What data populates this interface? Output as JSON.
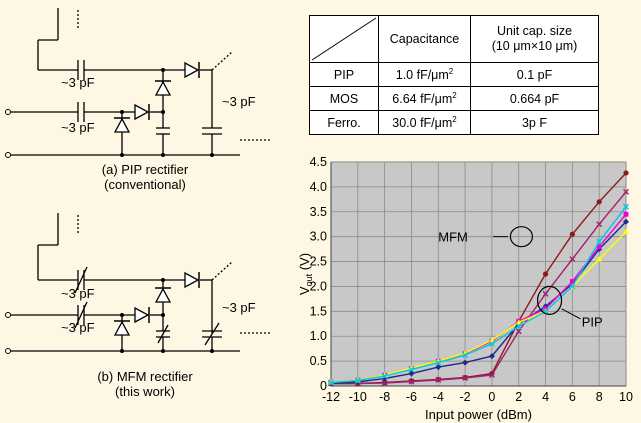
{
  "table": {
    "headers": [
      "",
      "Capacitance",
      "Unit cap. size",
      "(10 μm×10 μm)"
    ],
    "rows": [
      {
        "name": "PIP",
        "capacitance": "1.0 fF/μm",
        "exp": "2",
        "unit": "0.1 pF"
      },
      {
        "name": "MOS",
        "capacitance": "6.64 fF/μm",
        "exp": "2",
        "unit": "0.664 pF"
      },
      {
        "name": "Ferro.",
        "capacitance": "30.0 fF/μm",
        "exp": "2",
        "unit": "3p F"
      }
    ]
  },
  "circuits": {
    "top_caption_1": "(a) PIP rectifier",
    "top_caption_2": "(conventional)",
    "bottom_caption_1": "(b) MFM rectifier",
    "bottom_caption_2": "(this work)",
    "cap_label": "~3 pF"
  },
  "chart_data": {
    "type": "line",
    "xlabel": "Input power (dBm)",
    "ylabel_main": "V",
    "ylabel_sub": "out",
    "ylabel_unit": " (V)",
    "xlim": [
      -12,
      10
    ],
    "ylim": [
      0,
      4.5
    ],
    "xticks": [
      -12,
      -10,
      -8,
      -6,
      -4,
      -2,
      0,
      2,
      4,
      6,
      8,
      10
    ],
    "yticks": [
      "0",
      "0.5",
      "1.0",
      "1.5",
      "2.0",
      "2.5",
      "3.0",
      "3.5",
      "4.0",
      "4.5"
    ],
    "grid": true,
    "annotations": [
      "MFM",
      "PIP"
    ],
    "series": [
      {
        "color": "#8b1a1a",
        "marker": "circle",
        "x": [
          -12,
          -10,
          -8,
          -6,
          -4,
          -2,
          0,
          2,
          4,
          6,
          8,
          10
        ],
        "y": [
          0.05,
          0.05,
          0.07,
          0.1,
          0.13,
          0.17,
          0.25,
          1.3,
          2.25,
          3.05,
          3.7,
          4.28
        ]
      },
      {
        "color": "#a0206e",
        "marker": "cross",
        "x": [
          -12,
          -10,
          -8,
          -6,
          -4,
          -2,
          0,
          2,
          4,
          6,
          8,
          10
        ],
        "y": [
          0.05,
          0.05,
          0.06,
          0.09,
          0.12,
          0.16,
          0.22,
          1.1,
          1.85,
          2.55,
          3.25,
          3.9
        ]
      },
      {
        "color": "#1e2a8c",
        "marker": "diamond",
        "x": [
          -12,
          -10,
          -8,
          -6,
          -4,
          -2,
          0,
          2,
          4,
          6,
          8,
          10
        ],
        "y": [
          0.05,
          0.08,
          0.15,
          0.25,
          0.38,
          0.47,
          0.6,
          1.25,
          1.6,
          2.05,
          2.75,
          3.3
        ]
      },
      {
        "color": "#f000d0",
        "marker": "square",
        "x": [
          -12,
          -10,
          -8,
          -6,
          -4,
          -2,
          0,
          2,
          4,
          6,
          8,
          10
        ],
        "y": [
          0.08,
          0.12,
          0.22,
          0.35,
          0.5,
          0.65,
          0.9,
          1.3,
          1.55,
          2.1,
          2.8,
          3.45
        ]
      },
      {
        "color": "#ffff00",
        "marker": "triangle",
        "x": [
          -12,
          -10,
          -8,
          -6,
          -4,
          -2,
          0,
          2,
          4,
          6,
          8,
          10
        ],
        "y": [
          0.08,
          0.12,
          0.22,
          0.36,
          0.5,
          0.66,
          0.92,
          1.28,
          1.5,
          2.0,
          2.55,
          3.1
        ]
      },
      {
        "color": "#00c8e8",
        "marker": "cross",
        "x": [
          -12,
          -10,
          -8,
          -6,
          -4,
          -2,
          0,
          2,
          4,
          6,
          8,
          10
        ],
        "y": [
          0.07,
          0.11,
          0.2,
          0.33,
          0.47,
          0.62,
          0.85,
          1.2,
          1.5,
          2.0,
          2.9,
          3.6
        ]
      }
    ]
  }
}
